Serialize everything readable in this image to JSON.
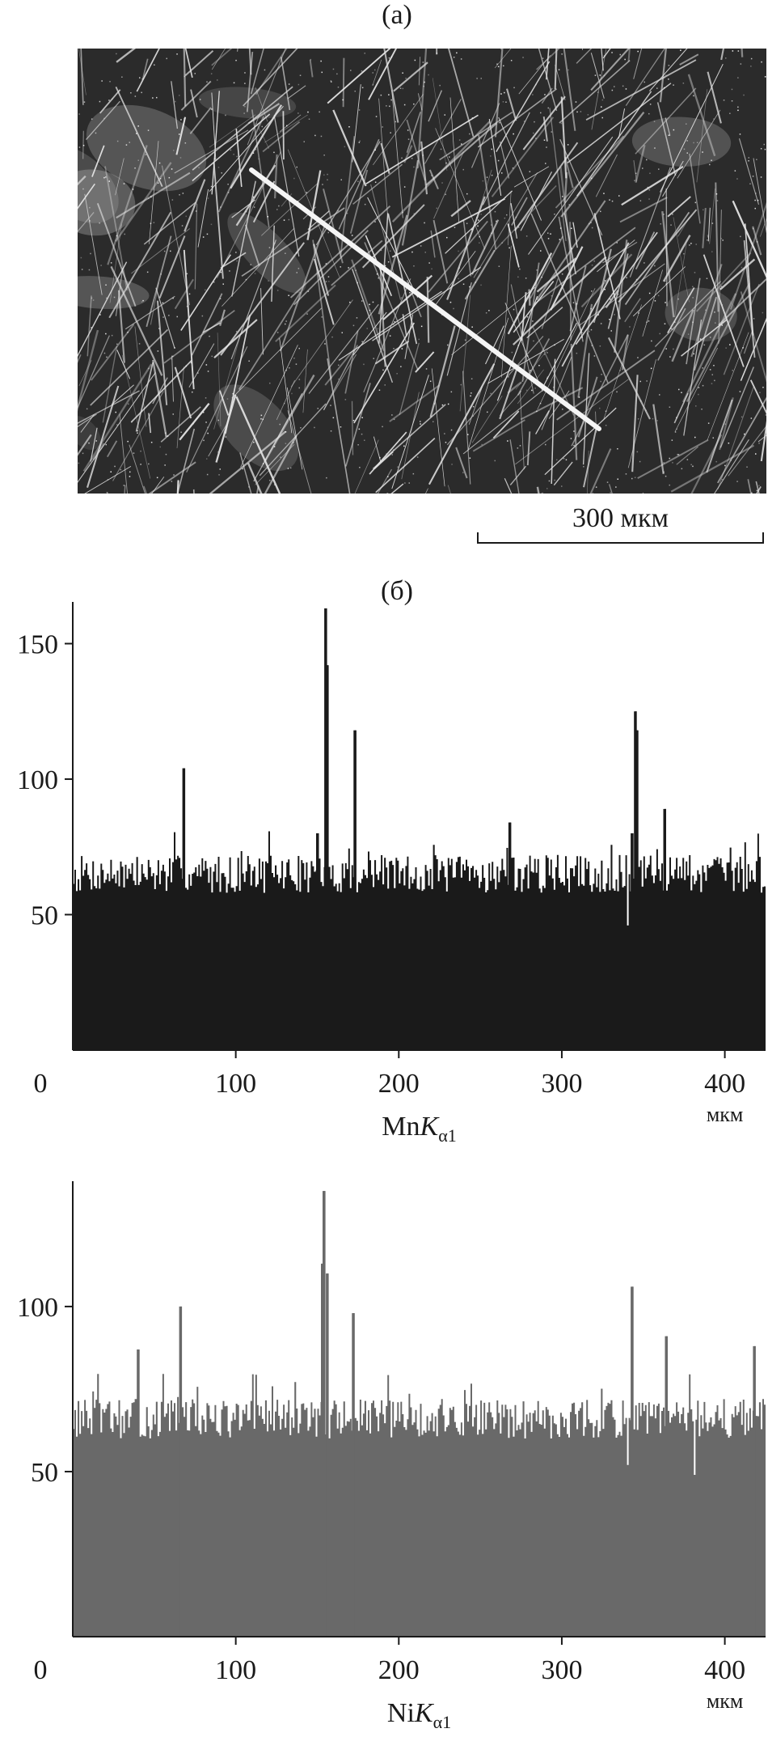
{
  "panels": {
    "a": "(а)",
    "b": "(б)"
  },
  "scalebar": {
    "text": "300 мкм"
  },
  "chart_data": [
    {
      "type": "bar",
      "xunit": "мкм",
      "xlim": [
        0,
        425
      ],
      "ylim": [
        0,
        163
      ],
      "xticks": [
        0,
        100,
        200,
        300,
        400
      ],
      "yticks": [
        50,
        100,
        150
      ],
      "color": "#1a1a1a",
      "baseline": 65,
      "noise": 7,
      "step": 1,
      "seed": 7,
      "peaks": [
        {
          "x": 68,
          "y": 104
        },
        {
          "x": 150,
          "y": 80
        },
        {
          "x": 155,
          "y": 163
        },
        {
          "x": 156,
          "y": 142
        },
        {
          "x": 173,
          "y": 118
        },
        {
          "x": 268,
          "y": 84
        },
        {
          "x": 343,
          "y": 80
        },
        {
          "x": 345,
          "y": 125
        },
        {
          "x": 346,
          "y": 118
        },
        {
          "x": 363,
          "y": 89
        }
      ],
      "dips": [
        {
          "x": 340,
          "y": 46
        }
      ]
    },
    {
      "type": "bar",
      "xunit": "мкм",
      "xlim": [
        0,
        425
      ],
      "ylim": [
        0,
        136
      ],
      "xticks": [
        0,
        100,
        200,
        300,
        400
      ],
      "yticks": [
        50,
        100
      ],
      "color": "#696969",
      "baseline": 66,
      "noise": 6,
      "step": 1,
      "seed": 13,
      "peaks": [
        {
          "x": 40,
          "y": 87
        },
        {
          "x": 66,
          "y": 100
        },
        {
          "x": 153,
          "y": 113
        },
        {
          "x": 154,
          "y": 135
        },
        {
          "x": 156,
          "y": 110
        },
        {
          "x": 172,
          "y": 98
        },
        {
          "x": 343,
          "y": 106
        },
        {
          "x": 364,
          "y": 91
        },
        {
          "x": 418,
          "y": 88
        }
      ],
      "dips": [
        {
          "x": 340,
          "y": 52
        },
        {
          "x": 381,
          "y": 49
        }
      ]
    }
  ],
  "chart_labels": {
    "mn": {
      "xlabel_element": "Mn",
      "xlabel_sub": "α1",
      "xunit": "мкм"
    },
    "ni": {
      "xlabel_element": "Ni",
      "xlabel_sub": "α1",
      "xunit": "мкм"
    }
  }
}
